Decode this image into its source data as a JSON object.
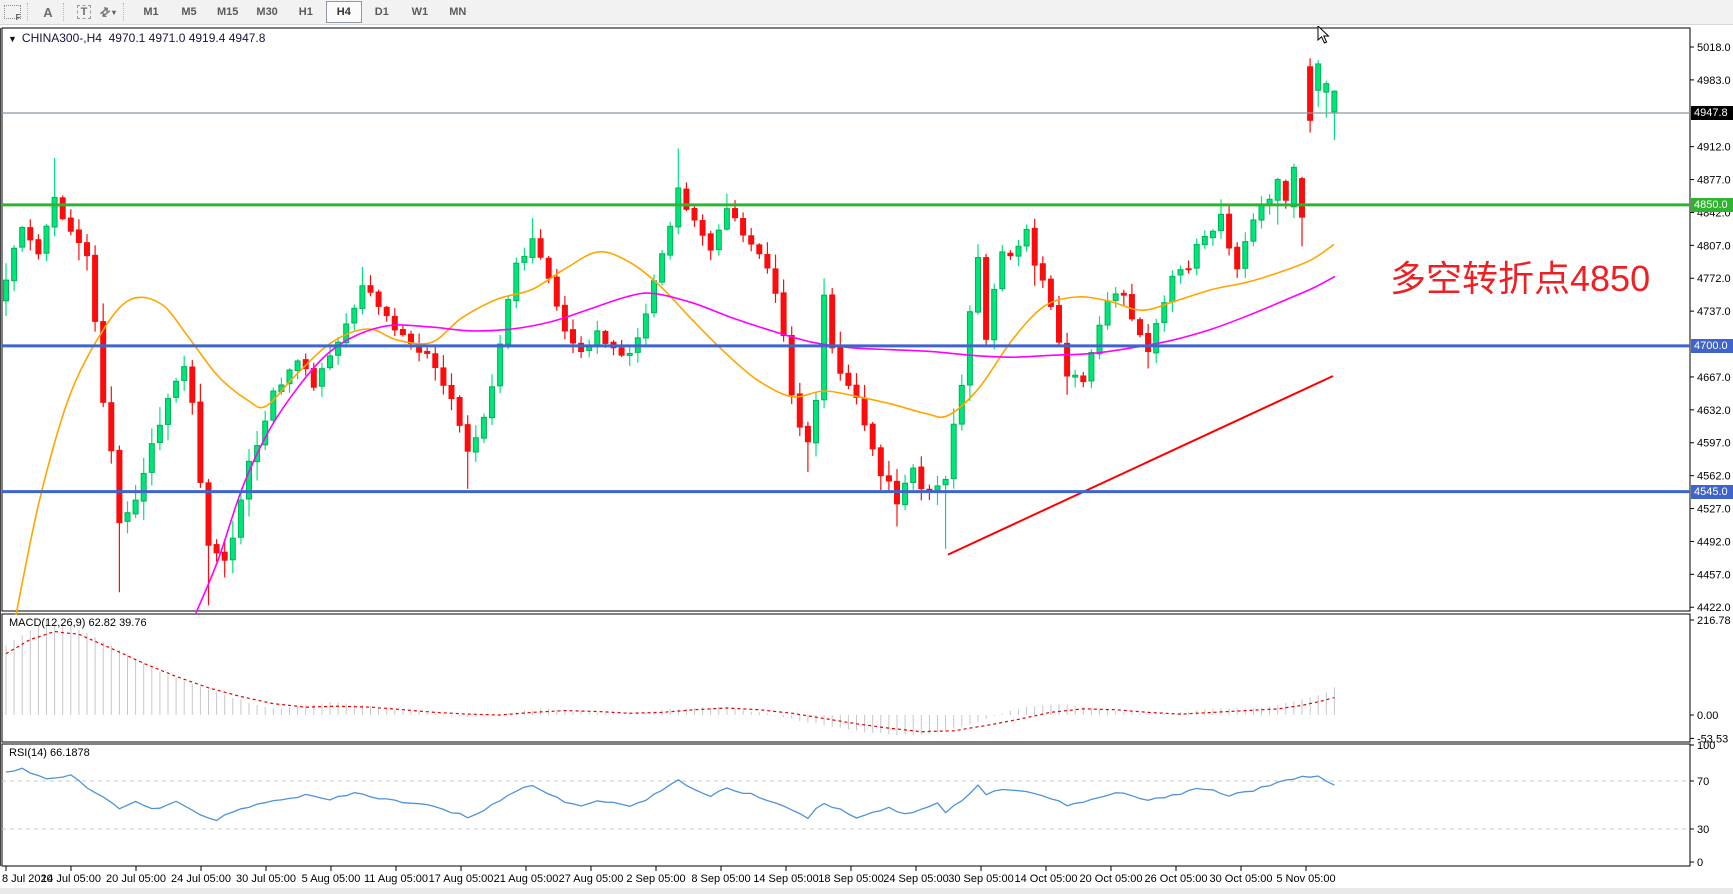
{
  "toolbar": {
    "shift_label": "F",
    "text_tool": "A",
    "label_tool": "T",
    "arrows_glyph": "⇄",
    "caret": "▾",
    "timeframes": [
      "M1",
      "M5",
      "M15",
      "M30",
      "H1",
      "H4",
      "D1",
      "W1",
      "MN"
    ],
    "active_timeframe": "H4"
  },
  "chart": {
    "dropdown_icon": "▼",
    "title": "CHINA300-,H4",
    "ohlc": "4970.1 4971.0 4919.4 4947.8",
    "annotation": "多空转折点4850"
  },
  "price_axis": {
    "ticks": [
      5018.0,
      4983.0,
      4912.0,
      4877.0,
      4842.0,
      4807.0,
      4772.0,
      4737.0,
      4667.0,
      4632.0,
      4597.0,
      4562.0,
      4527.0,
      4492.0,
      4457.0,
      4422.0
    ],
    "current_price": "4947.8",
    "levels": [
      {
        "value": 4850.0,
        "label": "4850.0",
        "color": "#30b430"
      },
      {
        "value": 4700.0,
        "label": "4700.0",
        "color": "#3f64cc"
      },
      {
        "value": 4545.0,
        "label": "4545.0",
        "color": "#3f64cc"
      }
    ]
  },
  "time_axis": {
    "labels": [
      "8 Jul 2020",
      "14 Jul 05:00",
      "20 Jul 05:00",
      "24 Jul 05:00",
      "30 Jul 05:00",
      "5 Aug 05:00",
      "11 Aug 05:00",
      "17 Aug 05:00",
      "21 Aug 05:00",
      "27 Aug 05:00",
      "2 Sep 05:00",
      "8 Sep 05:00",
      "14 Sep 05:00",
      "18 Sep 05:00",
      "24 Sep 05:00",
      "30 Sep 05:00",
      "14 Oct 05:00",
      "20 Oct 05:00",
      "26 Oct 05:00",
      "30 Oct 05:00",
      "5 Nov 05:00"
    ]
  },
  "indicators": {
    "macd": {
      "label": "MACD(12,26,9)",
      "values": "62.82 39.76",
      "axis": [
        "216.78",
        "0.00",
        "-53.53"
      ],
      "axis_values": [
        216.78,
        0.0,
        -53.53
      ]
    },
    "rsi": {
      "label": "RSI(14)",
      "value": "66.1878",
      "axis": [
        "100",
        "70",
        "30",
        "0"
      ],
      "axis_values": [
        100,
        70,
        30,
        0
      ]
    }
  },
  "colors": {
    "bull_fill": "#00e57a",
    "bull_stroke": "#00b257",
    "bear": "#fb0d0d",
    "ma_fast": "#ffa500",
    "ma_slow": "#ff00ff",
    "trendline": "#ff0000",
    "level_green": "#30b430",
    "level_blue": "#3f64cc",
    "current_line": "#8b97a5",
    "macd_hist": "#c6c6c6",
    "macd_signal": "#e60000",
    "rsi_line": "#4f93d8",
    "annotation": "#ee2024",
    "axis_text": "#000000"
  },
  "chart_data": {
    "type": "candlestick",
    "symbol": "CHINA300-",
    "timeframe": "H4",
    "last_bar": {
      "open": 4970.1,
      "high": 4971.0,
      "low": 4919.4,
      "close": 4947.8
    },
    "price_range": [
      4422.0,
      5018.0
    ],
    "num_candles": 165,
    "price_waypoints": [
      [
        0,
        4770,
        4748,
        4788,
        4732
      ],
      [
        2,
        4826
      ],
      [
        4,
        4798
      ],
      [
        6,
        4858,
        null,
        4900,
        null
      ],
      [
        8,
        4822
      ],
      [
        10,
        4796
      ],
      [
        12,
        4640
      ],
      [
        14,
        4512,
        null,
        null,
        4438
      ],
      [
        16,
        4536
      ],
      [
        18,
        4596
      ],
      [
        20,
        4644
      ],
      [
        22,
        4678
      ],
      [
        23,
        4640
      ],
      [
        25,
        4488,
        null,
        null,
        4424
      ],
      [
        27,
        4472
      ],
      [
        29,
        4536
      ],
      [
        31,
        4594
      ],
      [
        33,
        4652
      ],
      [
        36,
        4684
      ],
      [
        38,
        4656
      ],
      [
        41,
        4704
      ],
      [
        44,
        4764,
        null,
        4784,
        null
      ],
      [
        46,
        4742
      ],
      [
        49,
        4712
      ],
      [
        52,
        4692
      ],
      [
        55,
        4644
      ],
      [
        57,
        4588,
        null,
        null,
        4548
      ],
      [
        59,
        4624
      ],
      [
        61,
        4702
      ],
      [
        63,
        4788
      ],
      [
        65,
        4814,
        null,
        4836,
        null
      ],
      [
        67,
        4772
      ],
      [
        69,
        4716
      ],
      [
        71,
        4694
      ],
      [
        73,
        4716
      ],
      [
        75,
        4698
      ],
      [
        77,
        4692
      ],
      [
        79,
        4734
      ],
      [
        81,
        4798
      ],
      [
        83,
        4868,
        null,
        4910,
        null
      ],
      [
        85,
        4834
      ],
      [
        87,
        4802
      ],
      [
        89,
        4846,
        null,
        4862,
        null
      ],
      [
        91,
        4818
      ],
      [
        93,
        4798
      ],
      [
        95,
        4756
      ],
      [
        97,
        4648
      ],
      [
        99,
        4598,
        null,
        null,
        4566
      ],
      [
        100,
        4642
      ],
      [
        101,
        4754,
        null,
        4772,
        null
      ],
      [
        102,
        4698
      ],
      [
        104,
        4658
      ],
      [
        106,
        4616
      ],
      [
        108,
        4562
      ],
      [
        110,
        4532,
        null,
        null,
        4508
      ],
      [
        112,
        4570
      ],
      [
        114,
        4546
      ],
      [
        116,
        4558,
        null,
        null,
        4484
      ],
      [
        118,
        4658
      ],
      [
        120,
        4794
      ],
      [
        121,
        4707,
        4794,
        4798,
        4700
      ],
      [
        123,
        4800
      ],
      [
        125,
        4806
      ],
      [
        126,
        4824
      ],
      [
        127,
        4786,
        null,
        null,
        4764
      ],
      [
        129,
        4742
      ],
      [
        131,
        4668,
        null,
        null,
        4648
      ],
      [
        133,
        4662
      ],
      [
        135,
        4722
      ],
      [
        136,
        4748
      ],
      [
        138,
        4754
      ],
      [
        140,
        4712
      ],
      [
        141,
        4694,
        null,
        null,
        4676
      ],
      [
        143,
        4746
      ],
      [
        144,
        4774
      ],
      [
        146,
        4782
      ],
      [
        147,
        4808
      ],
      [
        149,
        4822
      ],
      [
        150,
        4840,
        null,
        4856,
        null
      ],
      [
        152,
        4782
      ],
      [
        154,
        4834
      ],
      [
        156,
        4856
      ],
      [
        157,
        4877,
        4855,
        4879,
        4829
      ],
      [
        158,
        4855,
        4875,
        4877,
        4846
      ],
      [
        159,
        4890,
        4848,
        4894,
        4836
      ],
      [
        160,
        4837,
        4878,
        4880,
        4806
      ],
      [
        161,
        4940,
        4997,
        5006,
        4927
      ],
      [
        162,
        5000,
        4972,
        5004,
        4954
      ],
      [
        163,
        4979,
        4970,
        4982,
        4943
      ],
      [
        164,
        4971,
        4949,
        4972,
        4919
      ]
    ],
    "ma_fast_points": [
      [
        16,
        4414
      ],
      [
        40,
        4538
      ],
      [
        70,
        4648
      ],
      [
        105,
        4720
      ],
      [
        132,
        4750
      ],
      [
        162,
        4744
      ],
      [
        188,
        4710
      ],
      [
        218,
        4668
      ],
      [
        248,
        4642
      ],
      [
        266,
        4636
      ],
      [
        295,
        4668
      ],
      [
        332,
        4704
      ],
      [
        368,
        4718
      ],
      [
        398,
        4706
      ],
      [
        432,
        4704
      ],
      [
        462,
        4730
      ],
      [
        498,
        4750
      ],
      [
        532,
        4760
      ],
      [
        565,
        4782
      ],
      [
        598,
        4800
      ],
      [
        628,
        4790
      ],
      [
        658,
        4766
      ],
      [
        692,
        4728
      ],
      [
        724,
        4694
      ],
      [
        757,
        4664
      ],
      [
        792,
        4646
      ],
      [
        824,
        4652
      ],
      [
        858,
        4646
      ],
      [
        892,
        4638
      ],
      [
        926,
        4628
      ],
      [
        948,
        4626
      ],
      [
        978,
        4654
      ],
      [
        1012,
        4706
      ],
      [
        1044,
        4742
      ],
      [
        1076,
        4752
      ],
      [
        1108,
        4748
      ],
      [
        1142,
        4738
      ],
      [
        1176,
        4748
      ],
      [
        1212,
        4760
      ],
      [
        1248,
        4768
      ],
      [
        1284,
        4780
      ],
      [
        1312,
        4792
      ],
      [
        1334,
        4808
      ]
    ],
    "ma_slow_points": [
      [
        196,
        4416
      ],
      [
        218,
        4472
      ],
      [
        242,
        4548
      ],
      [
        268,
        4608
      ],
      [
        298,
        4656
      ],
      [
        328,
        4692
      ],
      [
        358,
        4712
      ],
      [
        392,
        4722
      ],
      [
        432,
        4720
      ],
      [
        472,
        4716
      ],
      [
        512,
        4718
      ],
      [
        552,
        4726
      ],
      [
        592,
        4740
      ],
      [
        626,
        4752
      ],
      [
        652,
        4756
      ],
      [
        692,
        4746
      ],
      [
        732,
        4730
      ],
      [
        772,
        4716
      ],
      [
        812,
        4704
      ],
      [
        852,
        4698
      ],
      [
        892,
        4696
      ],
      [
        932,
        4694
      ],
      [
        972,
        4690
      ],
      [
        1012,
        4688
      ],
      [
        1052,
        4690
      ],
      [
        1092,
        4692
      ],
      [
        1132,
        4698
      ],
      [
        1172,
        4706
      ],
      [
        1212,
        4718
      ],
      [
        1252,
        4734
      ],
      [
        1288,
        4750
      ],
      [
        1314,
        4762
      ],
      [
        1335,
        4774
      ]
    ],
    "trendline": [
      [
        948,
        4478
      ],
      [
        1333,
        4668
      ]
    ],
    "macd_hist_anchors": [
      [
        0,
        158
      ],
      [
        2,
        182
      ],
      [
        5,
        216.78
      ],
      [
        8,
        204
      ],
      [
        12,
        168
      ],
      [
        16,
        126
      ],
      [
        20,
        92
      ],
      [
        24,
        64
      ],
      [
        28,
        40
      ],
      [
        31,
        22
      ],
      [
        34,
        14
      ],
      [
        37,
        22
      ],
      [
        40,
        30
      ],
      [
        43,
        26
      ],
      [
        46,
        16
      ],
      [
        49,
        8
      ],
      [
        52,
        4
      ],
      [
        55,
        -2
      ],
      [
        58,
        -6
      ],
      [
        61,
        2
      ],
      [
        64,
        10
      ],
      [
        67,
        14
      ],
      [
        70,
        8
      ],
      [
        73,
        6
      ],
      [
        76,
        2
      ],
      [
        79,
        6
      ],
      [
        82,
        14
      ],
      [
        85,
        16
      ],
      [
        88,
        18
      ],
      [
        91,
        12
      ],
      [
        94,
        2
      ],
      [
        97,
        -10
      ],
      [
        100,
        -20
      ],
      [
        103,
        -30
      ],
      [
        106,
        -38
      ],
      [
        109,
        -44
      ],
      [
        112,
        -47
      ],
      [
        115,
        -40
      ],
      [
        118,
        -26
      ],
      [
        121,
        -8
      ],
      [
        124,
        10
      ],
      [
        127,
        20
      ],
      [
        130,
        24
      ],
      [
        133,
        18
      ],
      [
        136,
        12
      ],
      [
        139,
        6
      ],
      [
        142,
        2
      ],
      [
        145,
        6
      ],
      [
        148,
        12
      ],
      [
        151,
        16
      ],
      [
        154,
        14
      ],
      [
        157,
        22
      ],
      [
        159,
        30
      ],
      [
        161,
        40
      ],
      [
        163,
        52
      ],
      [
        164,
        62.82
      ]
    ],
    "macd_signal_anchors": [
      [
        0,
        140
      ],
      [
        3,
        172
      ],
      [
        6,
        190
      ],
      [
        9,
        184
      ],
      [
        13,
        152
      ],
      [
        17,
        118
      ],
      [
        21,
        88
      ],
      [
        25,
        62
      ],
      [
        29,
        42
      ],
      [
        33,
        26
      ],
      [
        37,
        18
      ],
      [
        41,
        20
      ],
      [
        45,
        18
      ],
      [
        49,
        12
      ],
      [
        53,
        6
      ],
      [
        57,
        2
      ],
      [
        61,
        0
      ],
      [
        65,
        6
      ],
      [
        69,
        10
      ],
      [
        73,
        8
      ],
      [
        77,
        4
      ],
      [
        81,
        6
      ],
      [
        85,
        12
      ],
      [
        89,
        16
      ],
      [
        93,
        12
      ],
      [
        97,
        4
      ],
      [
        101,
        -8
      ],
      [
        105,
        -20
      ],
      [
        109,
        -30
      ],
      [
        113,
        -38
      ],
      [
        117,
        -36
      ],
      [
        121,
        -24
      ],
      [
        125,
        -10
      ],
      [
        129,
        6
      ],
      [
        133,
        14
      ],
      [
        137,
        12
      ],
      [
        141,
        6
      ],
      [
        145,
        2
      ],
      [
        149,
        6
      ],
      [
        153,
        10
      ],
      [
        157,
        14
      ],
      [
        160,
        22
      ],
      [
        162,
        30
      ],
      [
        164,
        39.76
      ]
    ],
    "rsi_anchors": [
      [
        0,
        78
      ],
      [
        2,
        80
      ],
      [
        5,
        72
      ],
      [
        8,
        74
      ],
      [
        11,
        60
      ],
      [
        14,
        48
      ],
      [
        16,
        52
      ],
      [
        18,
        46
      ],
      [
        21,
        52
      ],
      [
        24,
        42
      ],
      [
        26,
        38
      ],
      [
        28,
        44
      ],
      [
        31,
        50
      ],
      [
        34,
        55
      ],
      [
        37,
        58
      ],
      [
        40,
        54
      ],
      [
        43,
        60
      ],
      [
        46,
        56
      ],
      [
        49,
        52
      ],
      [
        52,
        50
      ],
      [
        55,
        44
      ],
      [
        57,
        40
      ],
      [
        59,
        46
      ],
      [
        61,
        54
      ],
      [
        63,
        62
      ],
      [
        65,
        66
      ],
      [
        67,
        60
      ],
      [
        69,
        52
      ],
      [
        71,
        50
      ],
      [
        73,
        54
      ],
      [
        75,
        51
      ],
      [
        77,
        50
      ],
      [
        79,
        55
      ],
      [
        81,
        62
      ],
      [
        83,
        70
      ],
      [
        85,
        63
      ],
      [
        87,
        58
      ],
      [
        89,
        64
      ],
      [
        91,
        60
      ],
      [
        93,
        57
      ],
      [
        95,
        52
      ],
      [
        97,
        46
      ],
      [
        99,
        40
      ],
      [
        101,
        52
      ],
      [
        103,
        46
      ],
      [
        105,
        40
      ],
      [
        107,
        44
      ],
      [
        109,
        48
      ],
      [
        111,
        42
      ],
      [
        113,
        47
      ],
      [
        115,
        52
      ],
      [
        116,
        44
      ],
      [
        118,
        54
      ],
      [
        120,
        66
      ],
      [
        121,
        58
      ],
      [
        123,
        64
      ],
      [
        125,
        62
      ],
      [
        127,
        60
      ],
      [
        129,
        55
      ],
      [
        131,
        50
      ],
      [
        133,
        52
      ],
      [
        135,
        56
      ],
      [
        137,
        60
      ],
      [
        139,
        58
      ],
      [
        141,
        53
      ],
      [
        143,
        57
      ],
      [
        145,
        60
      ],
      [
        147,
        64
      ],
      [
        149,
        62
      ],
      [
        151,
        58
      ],
      [
        153,
        61
      ],
      [
        155,
        64
      ],
      [
        157,
        68
      ],
      [
        159,
        72
      ],
      [
        161,
        74
      ],
      [
        162,
        75
      ],
      [
        163,
        71
      ],
      [
        164,
        66.19
      ]
    ]
  }
}
